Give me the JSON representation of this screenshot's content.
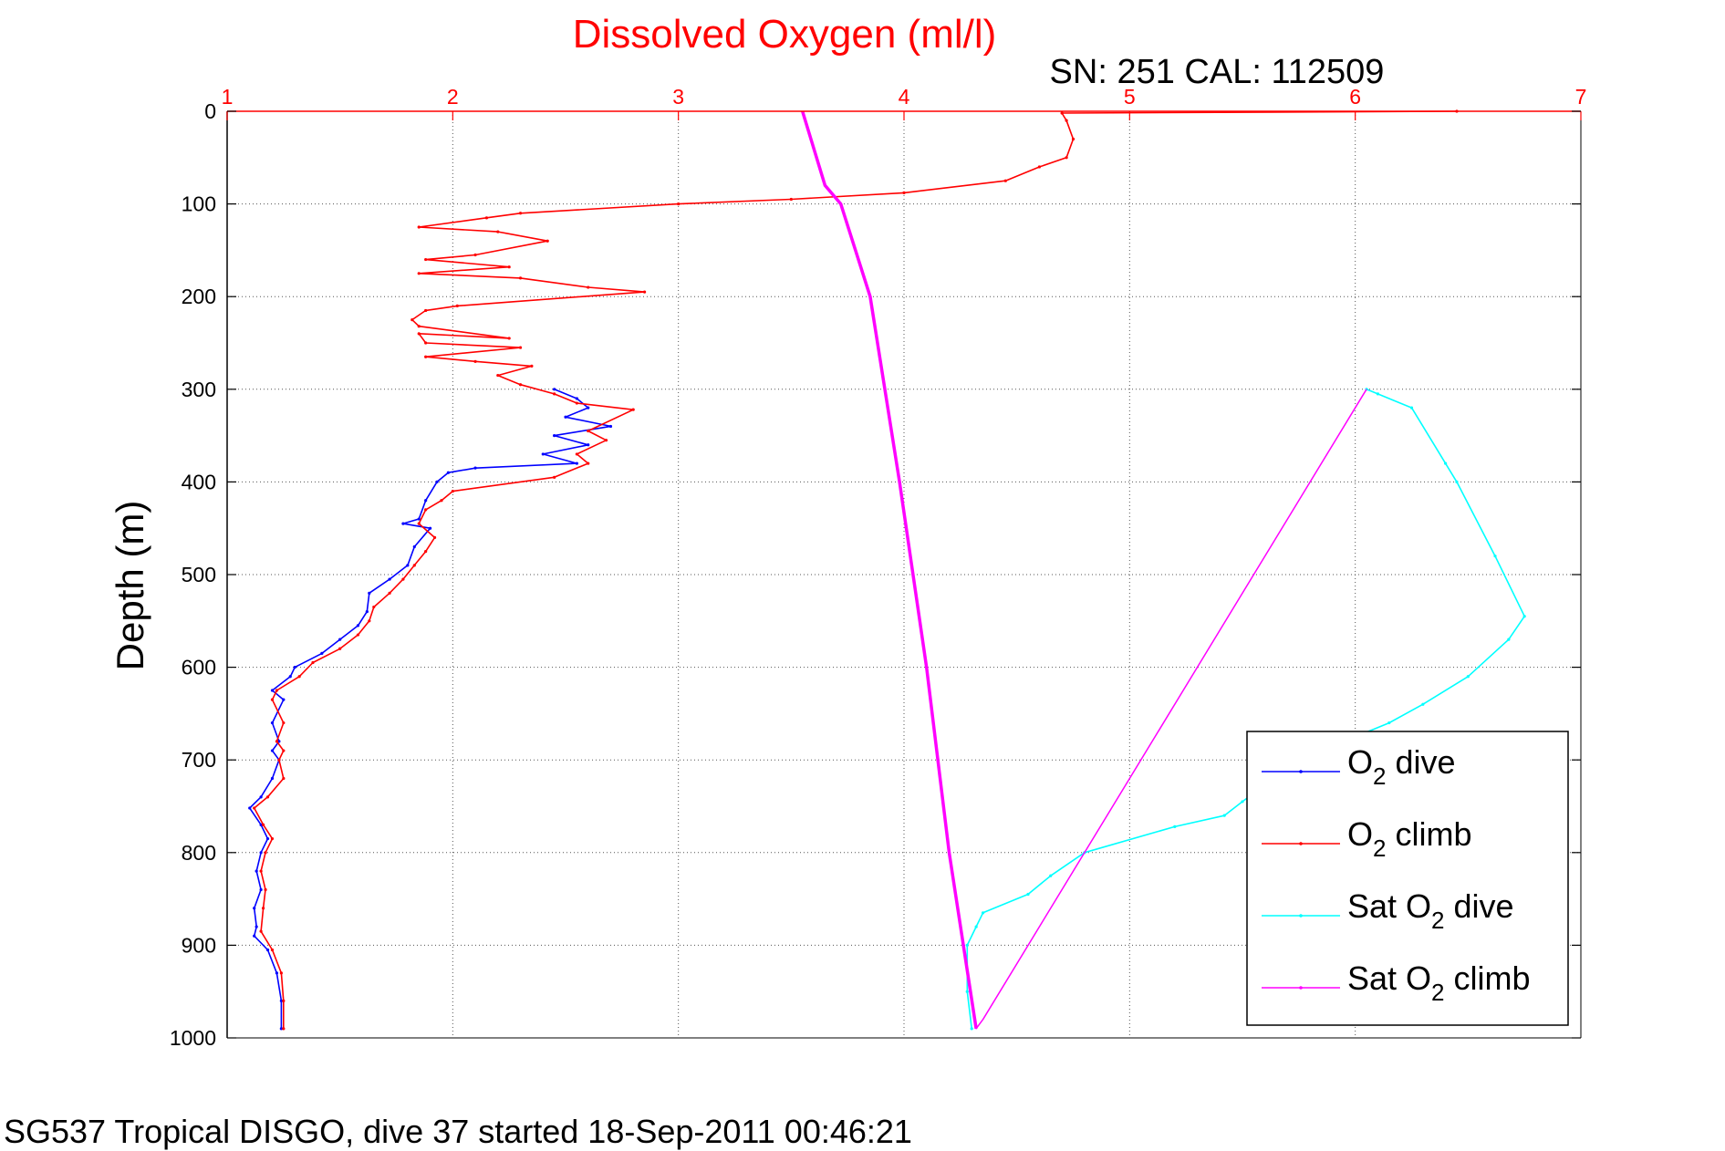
{
  "chart_data": {
    "type": "line",
    "title": "Dissolved Oxygen (ml/l)",
    "subtitle": "SN: 251  CAL: 112509",
    "ylabel": "Depth (m)",
    "footer": "SG537 Tropical DISGO, dive 37 started 18-Sep-2011 00:46:21",
    "xlim": [
      1,
      7
    ],
    "ylim": [
      0,
      1000
    ],
    "y_reversed": true,
    "x_axis_position": "top",
    "xticks": [
      1,
      2,
      3,
      4,
      5,
      6,
      7
    ],
    "yticks": [
      0,
      100,
      200,
      300,
      400,
      500,
      600,
      700,
      800,
      900,
      1000
    ],
    "grid": true,
    "legend_position": "bottom-right",
    "colors": {
      "axis_top": "#ff0000",
      "axis_left": "#000000",
      "grid": "#555555",
      "title": "#ff0000"
    },
    "series": [
      {
        "name_parts": [
          "O",
          "2",
          " dive"
        ],
        "color": "#0000ff",
        "style": "dots-line",
        "points": [
          [
            2.45,
            300
          ],
          [
            2.55,
            310
          ],
          [
            2.6,
            320
          ],
          [
            2.5,
            330
          ],
          [
            2.7,
            340
          ],
          [
            2.45,
            350
          ],
          [
            2.6,
            360
          ],
          [
            2.4,
            370
          ],
          [
            2.55,
            380
          ],
          [
            2.1,
            385
          ],
          [
            1.98,
            390
          ],
          [
            1.93,
            400
          ],
          [
            1.88,
            420
          ],
          [
            1.85,
            440
          ],
          [
            1.78,
            445
          ],
          [
            1.9,
            450
          ],
          [
            1.83,
            470
          ],
          [
            1.8,
            490
          ],
          [
            1.72,
            505
          ],
          [
            1.63,
            520
          ],
          [
            1.62,
            540
          ],
          [
            1.58,
            555
          ],
          [
            1.5,
            570
          ],
          [
            1.42,
            585
          ],
          [
            1.3,
            600
          ],
          [
            1.28,
            610
          ],
          [
            1.2,
            625
          ],
          [
            1.25,
            635
          ],
          [
            1.2,
            660
          ],
          [
            1.23,
            680
          ],
          [
            1.2,
            690
          ],
          [
            1.23,
            700
          ],
          [
            1.2,
            720
          ],
          [
            1.15,
            740
          ],
          [
            1.1,
            752
          ],
          [
            1.15,
            770
          ],
          [
            1.18,
            785
          ],
          [
            1.15,
            800
          ],
          [
            1.13,
            820
          ],
          [
            1.15,
            840
          ],
          [
            1.12,
            860
          ],
          [
            1.13,
            880
          ],
          [
            1.12,
            890
          ],
          [
            1.18,
            905
          ],
          [
            1.22,
            930
          ],
          [
            1.24,
            960
          ],
          [
            1.24,
            990
          ]
        ]
      },
      {
        "name_parts": [
          "O",
          "2",
          " climb"
        ],
        "color": "#ff0000",
        "style": "dots-line",
        "points": [
          [
            1.25,
            990
          ],
          [
            1.25,
            960
          ],
          [
            1.24,
            930
          ],
          [
            1.2,
            905
          ],
          [
            1.15,
            885
          ],
          [
            1.16,
            860
          ],
          [
            1.17,
            840
          ],
          [
            1.15,
            820
          ],
          [
            1.17,
            800
          ],
          [
            1.2,
            785
          ],
          [
            1.16,
            770
          ],
          [
            1.12,
            752
          ],
          [
            1.18,
            740
          ],
          [
            1.25,
            720
          ],
          [
            1.23,
            700
          ],
          [
            1.25,
            690
          ],
          [
            1.22,
            680
          ],
          [
            1.25,
            660
          ],
          [
            1.2,
            635
          ],
          [
            1.22,
            625
          ],
          [
            1.32,
            610
          ],
          [
            1.38,
            595
          ],
          [
            1.5,
            580
          ],
          [
            1.58,
            565
          ],
          [
            1.63,
            550
          ],
          [
            1.65,
            535
          ],
          [
            1.72,
            520
          ],
          [
            1.78,
            505
          ],
          [
            1.83,
            490
          ],
          [
            1.88,
            475
          ],
          [
            1.92,
            460
          ],
          [
            1.85,
            445
          ],
          [
            1.88,
            430
          ],
          [
            1.95,
            420
          ],
          [
            2.0,
            410
          ],
          [
            2.45,
            395
          ],
          [
            2.6,
            380
          ],
          [
            2.55,
            370
          ],
          [
            2.68,
            355
          ],
          [
            2.6,
            345
          ],
          [
            2.8,
            322
          ],
          [
            2.55,
            315
          ],
          [
            2.45,
            305
          ],
          [
            2.3,
            295
          ],
          [
            2.2,
            285
          ],
          [
            2.35,
            275
          ],
          [
            2.1,
            270
          ],
          [
            1.88,
            265
          ],
          [
            2.3,
            255
          ],
          [
            1.88,
            250
          ],
          [
            1.85,
            240
          ],
          [
            2.25,
            245
          ],
          [
            1.85,
            232
          ],
          [
            1.82,
            225
          ],
          [
            1.88,
            215
          ],
          [
            2.02,
            210
          ],
          [
            2.85,
            195
          ],
          [
            2.6,
            190
          ],
          [
            2.3,
            180
          ],
          [
            1.85,
            175
          ],
          [
            2.25,
            168
          ],
          [
            1.88,
            160
          ],
          [
            2.1,
            155
          ],
          [
            2.42,
            140
          ],
          [
            2.2,
            130
          ],
          [
            1.85,
            125
          ],
          [
            2.15,
            115
          ],
          [
            2.3,
            110
          ],
          [
            3.0,
            100
          ],
          [
            3.5,
            95
          ],
          [
            4.0,
            88
          ],
          [
            4.45,
            75
          ],
          [
            4.6,
            60
          ],
          [
            4.72,
            50
          ],
          [
            4.75,
            30
          ],
          [
            4.72,
            10
          ],
          [
            4.7,
            2
          ],
          [
            6.45,
            0
          ]
        ]
      },
      {
        "name_parts": [
          "Sat O",
          "2",
          " dive"
        ],
        "color": "#00ffff",
        "style": "dots-line",
        "points": [
          [
            6.05,
            300
          ],
          [
            6.1,
            305
          ],
          [
            6.25,
            320
          ],
          [
            6.4,
            380
          ],
          [
            6.45,
            400
          ],
          [
            6.62,
            480
          ],
          [
            6.75,
            545
          ],
          [
            6.68,
            570
          ],
          [
            6.5,
            610
          ],
          [
            6.3,
            640
          ],
          [
            6.15,
            660
          ],
          [
            5.75,
            700
          ],
          [
            5.5,
            745
          ],
          [
            5.42,
            760
          ],
          [
            5.2,
            772
          ],
          [
            4.8,
            800
          ],
          [
            4.65,
            825
          ],
          [
            4.55,
            845
          ],
          [
            4.35,
            865
          ],
          [
            4.32,
            880
          ],
          [
            4.28,
            900
          ],
          [
            4.28,
            950
          ],
          [
            4.3,
            990
          ]
        ]
      },
      {
        "name_parts": [
          "Sat O",
          "2",
          " climb"
        ],
        "color": "#ff00ff",
        "style": "line",
        "points": [
          [
            3.55,
            0
          ],
          [
            3.65,
            80
          ],
          [
            3.72,
            100
          ],
          [
            3.85,
            200
          ],
          [
            3.98,
            400
          ],
          [
            4.1,
            600
          ],
          [
            4.2,
            800
          ],
          [
            4.32,
            990
          ],
          [
            4.35,
            980
          ],
          [
            6.05,
            300
          ]
        ]
      }
    ]
  }
}
